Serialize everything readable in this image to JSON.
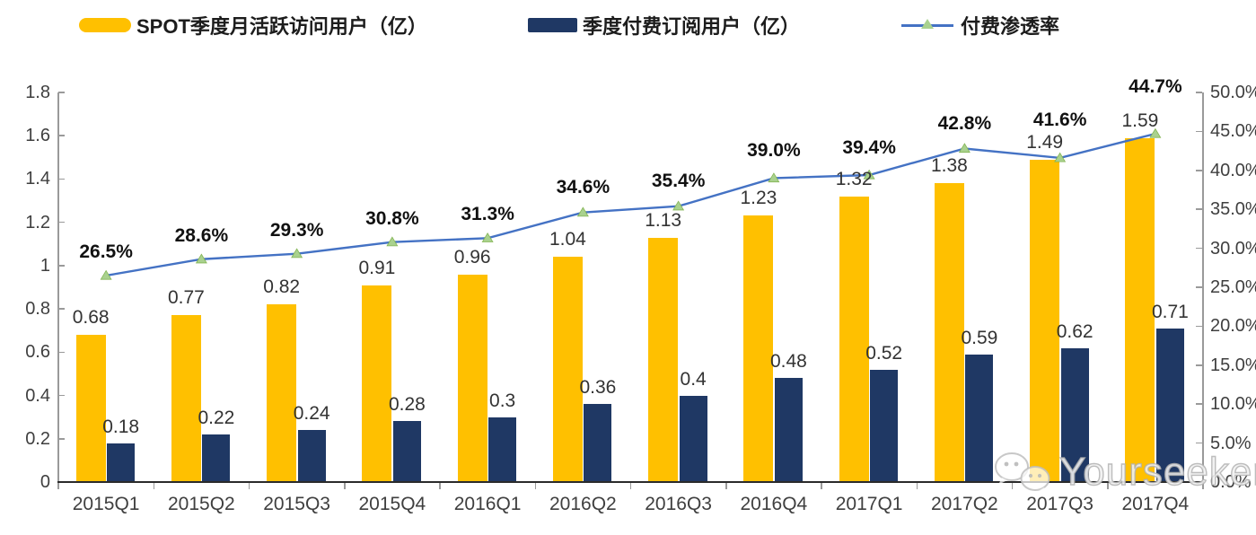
{
  "legend": [
    {
      "label": "SPOT季度月活跃访问用户（亿）",
      "type": "bar",
      "color": "#FFC000"
    },
    {
      "label": "季度付费订阅用户（亿）",
      "type": "bar",
      "color": "#1F3864"
    },
    {
      "label": "付费渗透率",
      "type": "line",
      "color": "#4472C4",
      "marker_color": "#A9D18E"
    }
  ],
  "chart_data": {
    "type": "bar+line combo",
    "categories": [
      "2015Q1",
      "2015Q2",
      "2015Q3",
      "2015Q4",
      "2016Q1",
      "2016Q2",
      "2016Q3",
      "2016Q4",
      "2017Q1",
      "2017Q2",
      "2017Q3",
      "2017Q4"
    ],
    "series": [
      {
        "name": "SPOT季度月活跃访问用户（亿）",
        "type": "bar",
        "axis": "left",
        "color": "#FFC000",
        "values": [
          0.68,
          0.77,
          0.82,
          0.91,
          0.96,
          1.04,
          1.13,
          1.23,
          1.32,
          1.38,
          1.49,
          1.59
        ],
        "labels": [
          "0.68",
          "0.77",
          "0.82",
          "0.91",
          "0.96",
          "1.04",
          "1.13",
          "1.23",
          "1.32",
          "1.38",
          "1.49",
          "1.59"
        ]
      },
      {
        "name": "季度付费订阅用户（亿）",
        "type": "bar",
        "axis": "left",
        "color": "#1F3864",
        "values": [
          0.18,
          0.22,
          0.24,
          0.28,
          0.3,
          0.36,
          0.4,
          0.48,
          0.52,
          0.59,
          0.62,
          0.71
        ],
        "labels": [
          "0.18",
          "0.22",
          "0.24",
          "0.28",
          "0.3",
          "0.36",
          "0.4",
          "0.48",
          "0.52",
          "0.59",
          "0.62",
          "0.71"
        ]
      },
      {
        "name": "付费渗透率",
        "type": "line",
        "axis": "right",
        "color": "#4472C4",
        "marker": "triangle",
        "marker_color": "#A9D18E",
        "values": [
          26.5,
          28.6,
          29.3,
          30.8,
          31.3,
          34.6,
          35.4,
          39.0,
          39.4,
          42.8,
          41.6,
          44.7
        ],
        "labels": [
          "26.5%",
          "28.6%",
          "29.3%",
          "30.8%",
          "31.3%",
          "34.6%",
          "35.4%",
          "39.0%",
          "39.4%",
          "42.8%",
          "41.6%",
          "44.7%"
        ]
      }
    ],
    "left_axis": {
      "min": 0,
      "max": 1.8,
      "ticks": [
        "1.8",
        "1.6",
        "1.4",
        "1.2",
        "1",
        "0.8",
        "0.6",
        "0.4",
        "0.2",
        "0"
      ]
    },
    "right_axis": {
      "min": 0,
      "max": 50,
      "ticks": [
        "50.0%",
        "45.0%",
        "40.0%",
        "35.0%",
        "30.0%",
        "25.0%",
        "20.0%",
        "15.0%",
        "10.0%",
        "5.0%",
        "0.0%"
      ]
    },
    "grid": false,
    "legend_position": "top"
  },
  "watermark": {
    "text": "Yourseeker",
    "icon": "wechat-icon"
  }
}
